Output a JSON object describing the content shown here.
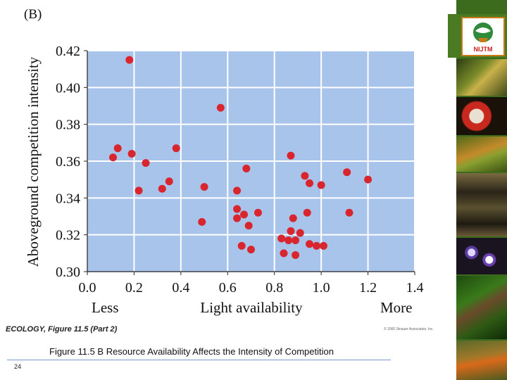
{
  "panel_label": "(B)",
  "figure_credit": "ECOLOGY, Figure 11.5 (Part 2)",
  "copyright": "© 2000 Sinauer Associates, Inc.",
  "subtitle": "Figure 11.5 B  Resource Availability Affects the Intensity of Competition",
  "page_number": "24",
  "logo_text": "NIJTM",
  "colors": {
    "plot_bg": "#a9c4ea",
    "grid": "#ffffff",
    "point": "#d9262e",
    "sidebar": "#3d6b1e"
  },
  "chart_data": {
    "type": "scatter",
    "title": "",
    "xlabel": "Light availability",
    "ylabel": "Aboveground competition intensity",
    "x_end_labels": {
      "left": "Less",
      "right": "More"
    },
    "xlim": [
      0.0,
      1.4
    ],
    "ylim": [
      0.3,
      0.42
    ],
    "xticks": [
      "0.0",
      "0.2",
      "0.4",
      "0.6",
      "0.8",
      "1.0",
      "1.2",
      "1.4"
    ],
    "yticks": [
      "0.30",
      "0.32",
      "0.34",
      "0.36",
      "0.38",
      "0.40",
      "0.42"
    ],
    "grid": true,
    "points": [
      {
        "x": 0.18,
        "y": 0.415
      },
      {
        "x": 0.57,
        "y": 0.389
      },
      {
        "x": 0.13,
        "y": 0.367
      },
      {
        "x": 0.38,
        "y": 0.367
      },
      {
        "x": 0.11,
        "y": 0.362
      },
      {
        "x": 0.19,
        "y": 0.364
      },
      {
        "x": 0.25,
        "y": 0.359
      },
      {
        "x": 0.22,
        "y": 0.344
      },
      {
        "x": 0.32,
        "y": 0.345
      },
      {
        "x": 0.35,
        "y": 0.349
      },
      {
        "x": 0.5,
        "y": 0.346
      },
      {
        "x": 0.49,
        "y": 0.327
      },
      {
        "x": 0.64,
        "y": 0.344
      },
      {
        "x": 0.64,
        "y": 0.334
      },
      {
        "x": 0.64,
        "y": 0.329
      },
      {
        "x": 0.67,
        "y": 0.331
      },
      {
        "x": 0.69,
        "y": 0.325
      },
      {
        "x": 0.73,
        "y": 0.332
      },
      {
        "x": 0.68,
        "y": 0.356
      },
      {
        "x": 0.66,
        "y": 0.314
      },
      {
        "x": 0.7,
        "y": 0.312
      },
      {
        "x": 0.87,
        "y": 0.363
      },
      {
        "x": 0.93,
        "y": 0.352
      },
      {
        "x": 0.95,
        "y": 0.348
      },
      {
        "x": 1.0,
        "y": 0.347
      },
      {
        "x": 0.94,
        "y": 0.332
      },
      {
        "x": 0.88,
        "y": 0.329
      },
      {
        "x": 0.87,
        "y": 0.322
      },
      {
        "x": 0.91,
        "y": 0.321
      },
      {
        "x": 0.83,
        "y": 0.318
      },
      {
        "x": 0.86,
        "y": 0.317
      },
      {
        "x": 0.89,
        "y": 0.317
      },
      {
        "x": 0.95,
        "y": 0.315
      },
      {
        "x": 0.98,
        "y": 0.314
      },
      {
        "x": 1.01,
        "y": 0.314
      },
      {
        "x": 0.84,
        "y": 0.31
      },
      {
        "x": 0.89,
        "y": 0.309
      },
      {
        "x": 1.11,
        "y": 0.354
      },
      {
        "x": 1.2,
        "y": 0.35
      },
      {
        "x": 1.12,
        "y": 0.332
      }
    ]
  }
}
